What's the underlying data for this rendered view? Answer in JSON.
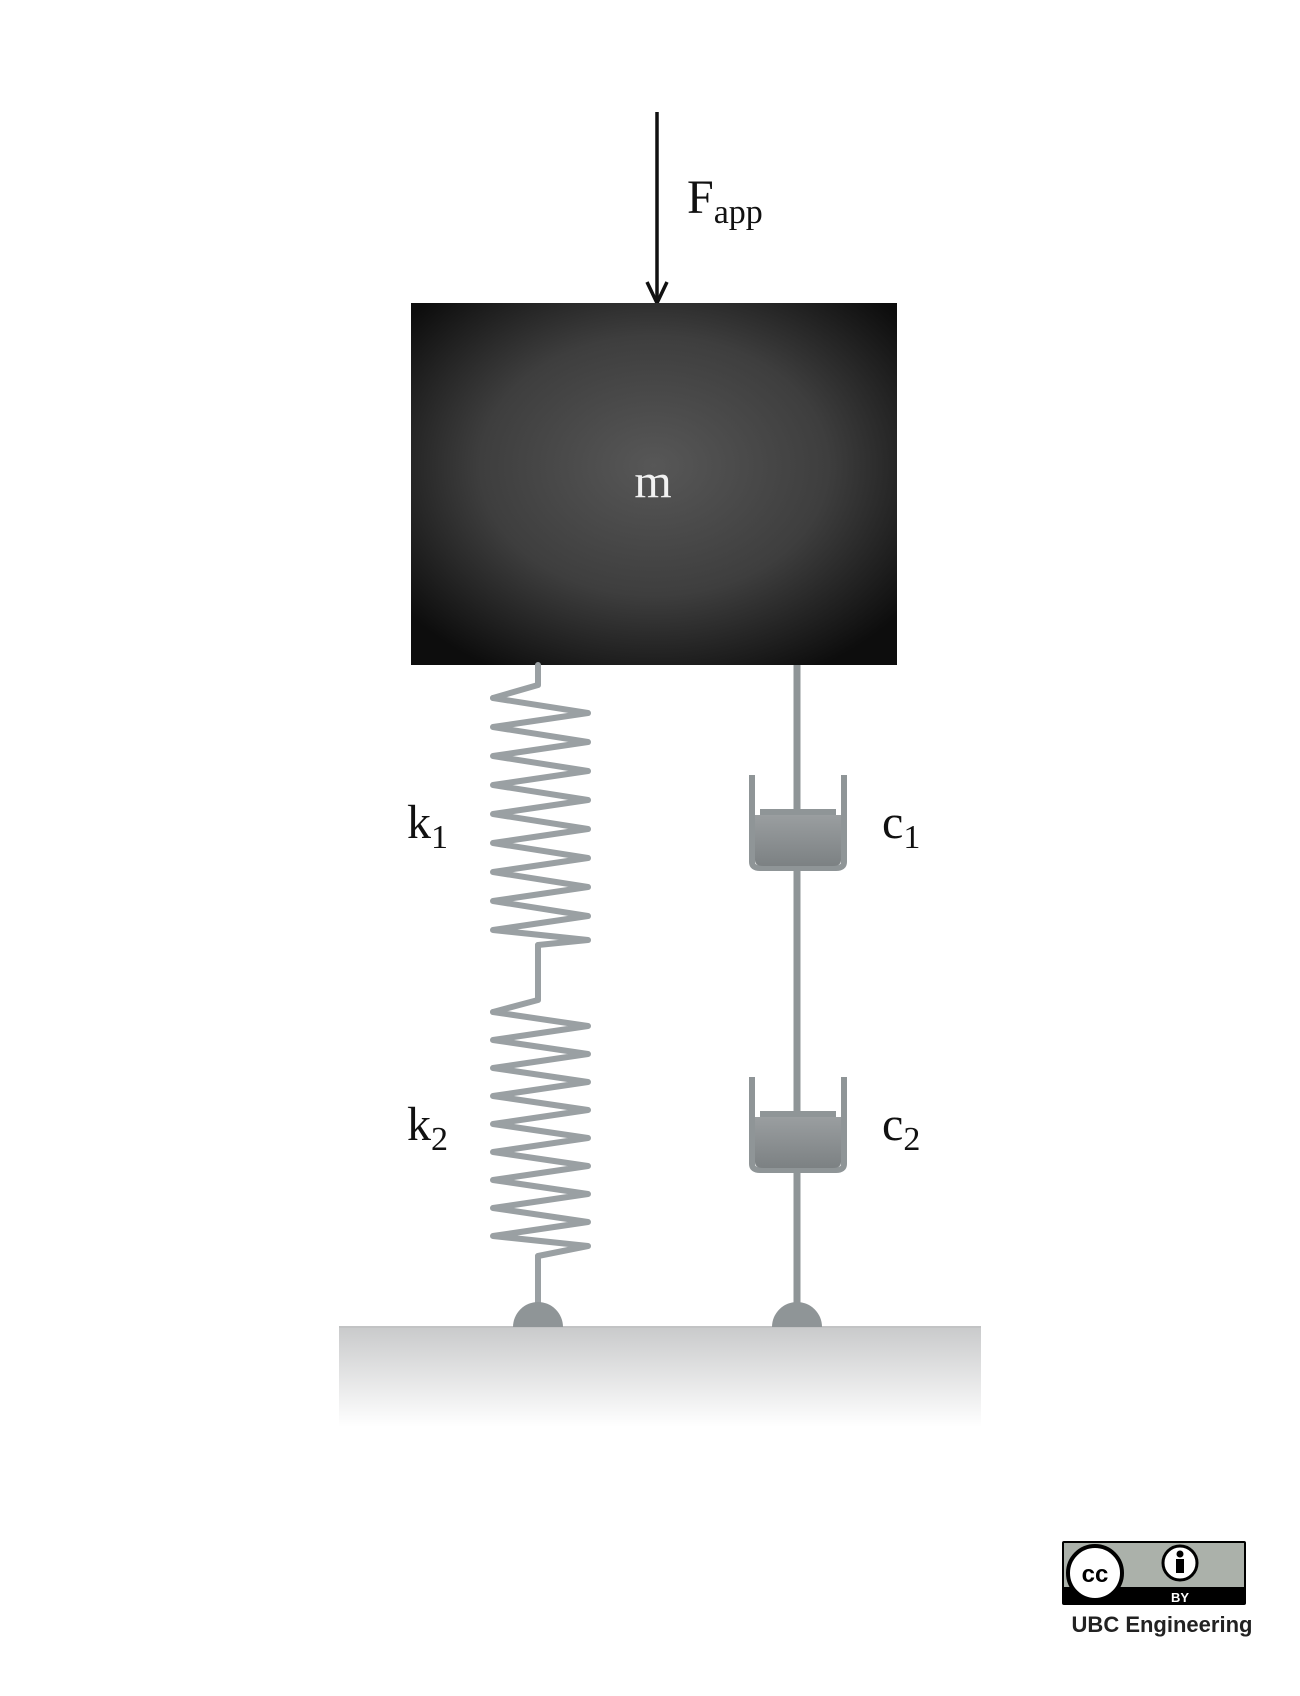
{
  "force": {
    "symbol": "F",
    "subscript": "app"
  },
  "mass": {
    "label": "m"
  },
  "springs": [
    {
      "symbol": "k",
      "subscript": "1"
    },
    {
      "symbol": "k",
      "subscript": "2"
    }
  ],
  "dampers": [
    {
      "symbol": "c",
      "subscript": "1"
    },
    {
      "symbol": "c",
      "subscript": "2"
    }
  ],
  "license": {
    "badge_text": "BY",
    "cc_text": "cc",
    "credit": "UBC Engineering"
  },
  "colors": {
    "mass": "#1a1a1a",
    "mass_highlight": "#555555",
    "spring": "#9aa0a3",
    "damper": "#8f9597",
    "ground": "#d7d8d8",
    "arrow": "#111111"
  },
  "icons": [
    "creative-commons-icon",
    "attribution-person-icon"
  ]
}
